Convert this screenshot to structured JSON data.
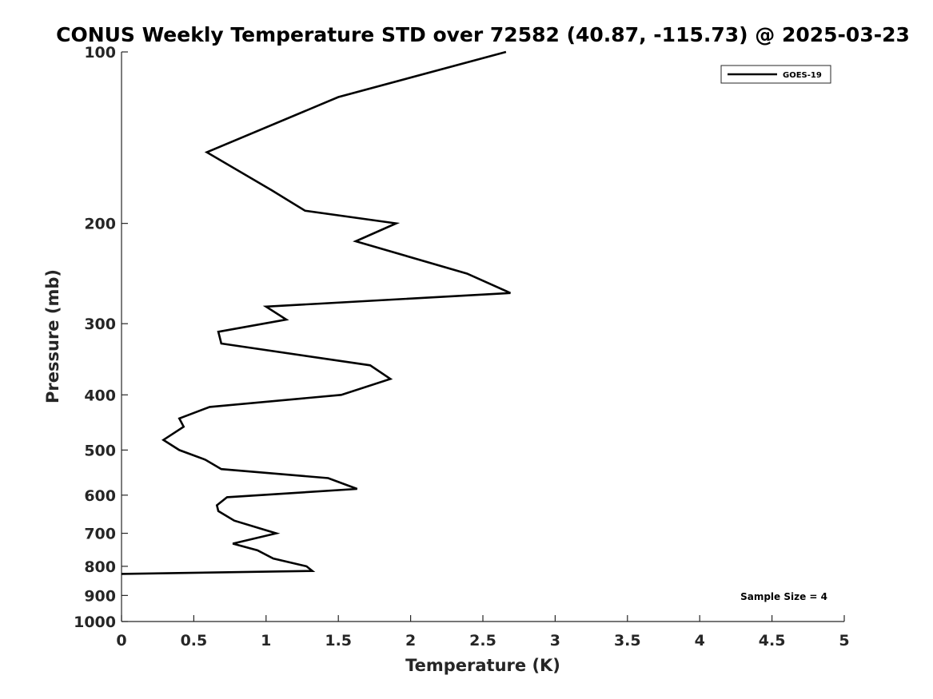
{
  "chart_data": {
    "type": "line",
    "title": "CONUS Weekly Temperature STD over 72582 (40.87, -115.73) @ 2025-03-23",
    "xlabel": "Temperature (K)",
    "ylabel": "Pressure (mb)",
    "xlim": [
      0,
      5
    ],
    "ylim": [
      100,
      1000
    ],
    "yscale": "log",
    "yreversed": true,
    "xticks": [
      0,
      0.5,
      1,
      1.5,
      2,
      2.5,
      3,
      3.5,
      4,
      4.5,
      5
    ],
    "xtick_labels": [
      "0",
      "0.5",
      "1",
      "1.5",
      "2",
      "2.5",
      "3",
      "3.5",
      "4",
      "4.5",
      "5"
    ],
    "yticks": [
      100,
      200,
      300,
      400,
      500,
      600,
      700,
      800,
      900,
      1000
    ],
    "ytick_labels": [
      "100",
      "200",
      "300",
      "400",
      "500",
      "600",
      "700",
      "800",
      "900",
      "1000"
    ],
    "grid": false,
    "legend": {
      "position": "top-right",
      "entries": [
        "GOES-19"
      ]
    },
    "annotation": "Sample Size = 4",
    "line_color": "#000000",
    "series": [
      {
        "name": "GOES-19",
        "x": [
          2.66,
          1.5,
          0.59,
          1.04,
          1.27,
          1.9,
          1.62,
          2.39,
          2.69,
          1.0,
          1.14,
          0.67,
          0.69,
          1.72,
          1.86,
          1.52,
          0.61,
          0.4,
          0.43,
          0.29,
          0.4,
          0.58,
          0.69,
          1.43,
          1.63,
          0.73,
          0.66,
          0.67,
          0.78,
          1.07,
          0.77,
          0.94,
          1.05,
          1.28,
          1.32,
          0.0
        ],
        "y": [
          100,
          120,
          150,
          175,
          190,
          200,
          215,
          245,
          265,
          280,
          295,
          310,
          325,
          355,
          375,
          400,
          420,
          440,
          455,
          480,
          500,
          520,
          540,
          560,
          585,
          605,
          625,
          640,
          665,
          700,
          730,
          750,
          775,
          800,
          815,
          825
        ]
      }
    ]
  }
}
